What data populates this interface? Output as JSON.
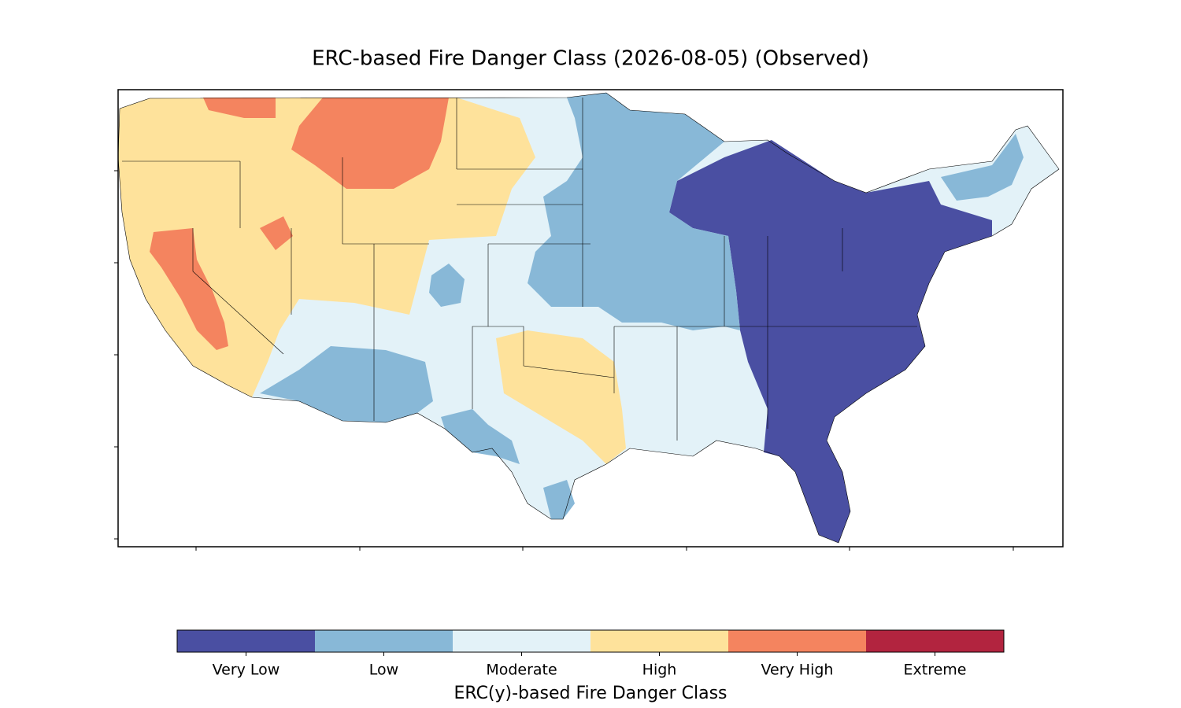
{
  "title": "ERC-based Fire Danger Class (2026-08-05) (Observed)",
  "legend": {
    "label": "ERC(y)-based Fire Danger Class",
    "classes": [
      {
        "name": "Very Low",
        "color": "#4a4fa2"
      },
      {
        "name": "Low",
        "color": "#88b8d7"
      },
      {
        "name": "Moderate",
        "color": "#e3f2f8"
      },
      {
        "name": "High",
        "color": "#fee29b"
      },
      {
        "name": "Very High",
        "color": "#f4845f"
      },
      {
        "name": "Extreme",
        "color": "#b2243f"
      }
    ]
  }
}
